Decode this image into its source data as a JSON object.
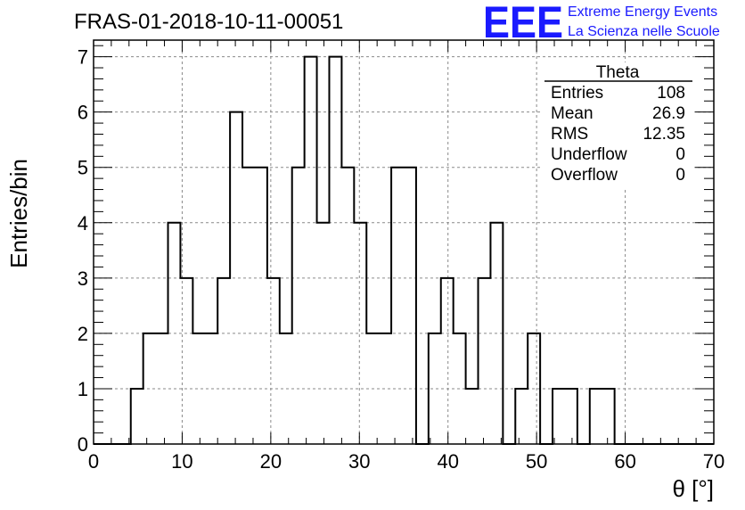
{
  "chart_data": {
    "type": "bar",
    "title": "FRAS-01-2018-10-11-00051",
    "xlabel": "θ [°]",
    "ylabel": "Entries/bin",
    "xlim": [
      0,
      70
    ],
    "ylim": [
      0,
      7.3
    ],
    "x_ticks": [
      0,
      10,
      20,
      30,
      40,
      50,
      60,
      70
    ],
    "y_ticks": [
      0,
      1,
      2,
      3,
      4,
      5,
      6,
      7
    ],
    "grid": true,
    "bin_width": 1.4,
    "bin_start": 0,
    "values": [
      0,
      0,
      0,
      1,
      2,
      2,
      4,
      3,
      2,
      2,
      3,
      6,
      5,
      5,
      3,
      2,
      5,
      7,
      4,
      7,
      5,
      4,
      2,
      2,
      5,
      5,
      0,
      2,
      3,
      2,
      1,
      3,
      4,
      0,
      1,
      2,
      0,
      1,
      1,
      0,
      1,
      1,
      0,
      0,
      0,
      0,
      0,
      0,
      0,
      0
    ],
    "stats_box": {
      "title": "Theta",
      "rows": [
        {
          "label": "Entries",
          "value": "108"
        },
        {
          "label": "Mean",
          "value": "26.9"
        },
        {
          "label": "RMS",
          "value": "12.35"
        },
        {
          "label": "Underflow",
          "value": "0"
        },
        {
          "label": "Overflow",
          "value": "0"
        }
      ]
    },
    "logo": {
      "text": "EEE",
      "line1": "Extreme Energy Events",
      "line2": "La Scienza nelle Scuole",
      "color": "#1a1aff"
    }
  }
}
